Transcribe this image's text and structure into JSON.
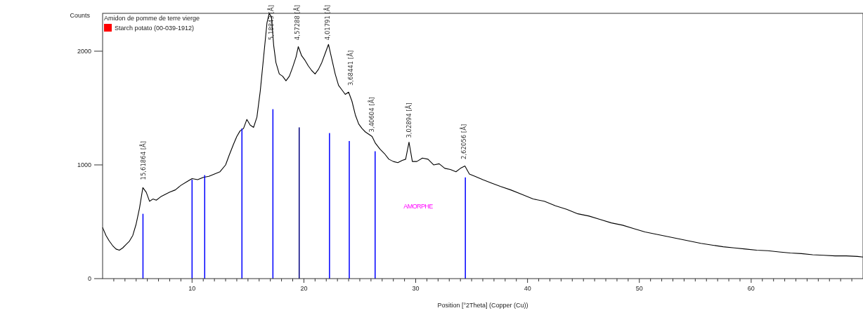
{
  "chart_data": {
    "type": "line",
    "xlabel": "Position [°2Theta] (Copper (Cu))",
    "ylabel": "Counts",
    "legend_title": "Amidon de pomme de terre vierge",
    "legend": "top left",
    "xlim": [
      2,
      70
    ],
    "ylim": [
      0,
      2333
    ],
    "yticks": [
      0,
      1000,
      2000
    ],
    "xticks": [
      {
        "value": 3,
        "label": null
      },
      {
        "value": 4,
        "label": null
      },
      {
        "value": 5,
        "label": null
      },
      {
        "value": 6,
        "label": null
      },
      {
        "value": 7,
        "label": null
      },
      {
        "value": 8,
        "label": null
      },
      {
        "value": 9,
        "label": null
      },
      10,
      {
        "value": 11,
        "label": null
      },
      {
        "value": 12,
        "label": null
      },
      {
        "value": 13,
        "label": null
      },
      {
        "value": 14,
        "label": null
      },
      {
        "value": 15,
        "label": null
      },
      {
        "value": 16,
        "label": null
      },
      {
        "value": 17,
        "label": null
      },
      {
        "value": 18,
        "label": null
      },
      {
        "value": 19,
        "label": null
      },
      20,
      {
        "value": 21,
        "label": null
      },
      {
        "value": 22,
        "label": null
      },
      {
        "value": 23,
        "label": null
      },
      {
        "value": 24,
        "label": null
      },
      {
        "value": 25,
        "label": null
      },
      {
        "value": 26,
        "label": null
      },
      {
        "value": 27,
        "label": null
      },
      {
        "value": 28,
        "label": null
      },
      {
        "value": 29,
        "label": null
      },
      30,
      {
        "value": 31,
        "label": null
      },
      {
        "value": 32,
        "label": null
      },
      {
        "value": 33,
        "label": null
      },
      {
        "value": 34,
        "label": null
      },
      {
        "value": 35,
        "label": null
      },
      {
        "value": 36,
        "label": null
      },
      {
        "value": 37,
        "label": null
      },
      {
        "value": 38,
        "label": null
      },
      {
        "value": 39,
        "label": null
      },
      40,
      {
        "value": 41,
        "label": null
      },
      {
        "value": 42,
        "label": null
      },
      {
        "value": 43,
        "label": null
      },
      {
        "value": 44,
        "label": null
      },
      {
        "value": 45,
        "label": null
      },
      {
        "value": 46,
        "label": null
      },
      {
        "value": 47,
        "label": null
      },
      {
        "value": 48,
        "label": null
      },
      {
        "value": 49,
        "label": null
      },
      50,
      {
        "value": 51,
        "label": null
      },
      {
        "value": 52,
        "label": null
      },
      {
        "value": 53,
        "label": null
      },
      {
        "value": 54,
        "label": null
      },
      {
        "value": 55,
        "label": null
      },
      {
        "value": 56,
        "label": null
      },
      {
        "value": 57,
        "label": null
      },
      {
        "value": 58,
        "label": null
      },
      {
        "value": 59,
        "label": null
      },
      60,
      {
        "value": 61,
        "label": null
      },
      {
        "value": 62,
        "label": null
      },
      {
        "value": 63,
        "label": null
      },
      {
        "value": 64,
        "label": null
      },
      {
        "value": 65,
        "label": null
      },
      {
        "value": 66,
        "label": null
      },
      {
        "value": 67,
        "label": null
      },
      {
        "value": 68,
        "label": null
      },
      {
        "value": 69,
        "label": null
      }
    ],
    "series": [
      {
        "color": "#000000",
        "x": [
          2,
          2.3,
          2.6,
          2.9,
          3.2,
          3.5,
          3.8,
          4.1,
          4.4,
          4.7,
          5.0,
          5.3,
          5.6,
          5.9,
          6.2,
          6.5,
          6.8,
          7.2,
          7.6,
          8,
          8.5,
          9,
          9.5,
          10,
          10.5,
          11,
          11.5,
          12,
          12.5,
          13,
          13.3,
          13.7,
          14,
          14.3,
          14.6,
          14.9,
          15.2,
          15.5,
          15.8,
          16.1,
          16.4,
          16.7,
          16.9,
          17.1,
          17.3,
          17.5,
          17.8,
          18.1,
          18.4,
          18.7,
          19,
          19.3,
          19.5,
          19.8,
          20.1,
          20.4,
          20.7,
          21,
          21.3,
          21.6,
          21.9,
          22.2,
          22.5,
          22.8,
          23.1,
          23.4,
          23.7,
          24,
          24.3,
          24.6,
          24.9,
          25.2,
          25.5,
          25.8,
          26.1,
          26.4,
          26.8,
          27.2,
          27.6,
          28,
          28.4,
          28.8,
          29.1,
          29.4,
          29.7,
          30.1,
          30.6,
          31.1,
          31.6,
          32.1,
          32.6,
          33.1,
          33.6,
          34,
          34.4,
          34.8,
          35.3,
          36,
          36.8,
          37.6,
          38.5,
          39.5,
          40.5,
          41.5,
          42.5,
          43.5,
          44.5,
          45.5,
          46.5,
          47.5,
          48.5,
          49.5,
          50.5,
          51.5,
          52.5,
          53.5,
          54.5,
          55.5,
          56.5,
          57.5,
          58.5,
          59.5,
          60.5,
          61.5,
          62.5,
          63.5,
          64.5,
          65.5,
          66.5,
          67.5,
          68.5,
          69.5,
          70
        ],
        "values": [
          450,
          380,
          330,
          290,
          260,
          250,
          270,
          300,
          330,
          380,
          480,
          620,
          800,
          760,
          680,
          700,
          690,
          720,
          740,
          760,
          780,
          820,
          850,
          880,
          870,
          890,
          900,
          920,
          940,
          1000,
          1080,
          1180,
          1250,
          1300,
          1320,
          1400,
          1350,
          1330,
          1420,
          1650,
          1950,
          2250,
          2333,
          2300,
          2050,
          1900,
          1800,
          1780,
          1740,
          1780,
          1860,
          1950,
          2040,
          1960,
          1920,
          1870,
          1830,
          1800,
          1840,
          1900,
          1980,
          2060,
          1930,
          1800,
          1700,
          1660,
          1620,
          1640,
          1560,
          1440,
          1360,
          1320,
          1290,
          1270,
          1250,
          1190,
          1140,
          1100,
          1050,
          1030,
          1020,
          1040,
          1050,
          1200,
          1030,
          1030,
          1060,
          1050,
          1000,
          1010,
          970,
          960,
          940,
          970,
          990,
          920,
          900,
          870,
          840,
          810,
          780,
          740,
          700,
          680,
          640,
          610,
          570,
          550,
          520,
          490,
          470,
          440,
          410,
          390,
          370,
          350,
          330,
          310,
          295,
          280,
          270,
          260,
          250,
          245,
          235,
          225,
          220,
          210,
          205,
          200,
          200,
          195,
          190
        ]
      },
      {
        "type": "bar",
        "name": "Starch potato (00-039-1912)",
        "color": "#ff0000",
        "colors": [
          "#0000ff",
          "#0000ff",
          "#0000ff",
          "#0000ff",
          "#0000ff",
          "#00007f",
          "#0000ff",
          "#0000ff",
          "#0000ff",
          "#0000ff"
        ],
        "x": [
          5.61,
          10.0,
          11.13,
          14.46,
          17.23,
          19.58,
          22.29,
          24.06,
          26.37,
          34.44
        ],
        "values": [
          570,
          870,
          910,
          1320,
          1490,
          1330,
          1280,
          1210,
          1120,
          890
        ]
      }
    ],
    "annotations": [
      {
        "text": "15,61864 [Å]",
        "x": 5.65,
        "y": 830
      },
      {
        "text": "5,18843 [Å]",
        "x": 17.1,
        "y": 2060
      },
      {
        "text": "4,57288 [Å]",
        "x": 19.4,
        "y": 2060
      },
      {
        "text": "4,01791 [Å]",
        "x": 22.1,
        "y": 2060
      },
      {
        "text": "3,68441 [Å]",
        "x": 24.2,
        "y": 1660
      },
      {
        "text": "3,40604 [Å]",
        "x": 26.1,
        "y": 1250
      },
      {
        "text": "3,02894 [Å]",
        "x": 29.4,
        "y": 1200
      },
      {
        "text": "2,62056 [Å]",
        "x": 34.3,
        "y": 1012
      },
      "AMORPHE"
    ]
  }
}
